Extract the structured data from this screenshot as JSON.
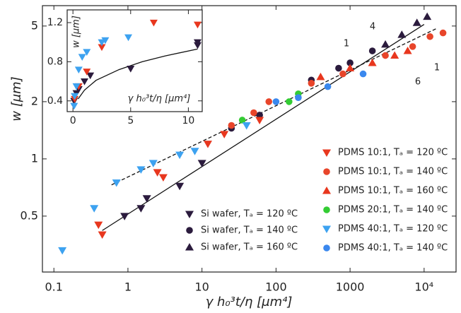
{
  "chart_data": [
    {
      "type": "scatter",
      "xlabel": "γ h₀³t/η  [μm⁴]",
      "ylabel": "w [μm]",
      "xscale": "log",
      "yscale": "log",
      "xlim": [
        0.07,
        27000
      ],
      "ylim": [
        0.254,
        6.4
      ],
      "xticks": [
        0.1,
        1,
        10,
        100,
        1000,
        {
          "value": 10000,
          "label": "10⁴"
        }
      ],
      "yticks": [
        0.5,
        1,
        2,
        5
      ],
      "series": [
        {
          "name": "Si wafer, Tₐ = 120 ºC",
          "color": "#2b1b3d",
          "marker": "down",
          "x": [
            0.9,
            1.5,
            1.8,
            5,
            10
          ],
          "y": [
            0.5,
            0.55,
            0.62,
            0.72,
            0.95
          ]
        },
        {
          "name": "Si wafer, Tₐ = 140 ºC",
          "color": "#2b1b3d",
          "marker": "circle",
          "x": [
            25,
            60,
            300,
            700,
            1000,
            2000
          ],
          "y": [
            1.45,
            1.7,
            2.6,
            3.0,
            3.2,
            3.7
          ]
        },
        {
          "name": "Si wafer, Tₐ = 160 ºC",
          "color": "#2b1b3d",
          "marker": "up",
          "x": [
            3000,
            5000,
            8000,
            11000
          ],
          "y": [
            4.0,
            4.5,
            5.2,
            5.6
          ]
        },
        {
          "name": "PDMS 10:1, Tₐ = 120 ºC",
          "color": "#e8371e",
          "marker": "down",
          "x": [
            0.4,
            0.45,
            2.5,
            3,
            12,
            20,
            60
          ],
          "y": [
            0.45,
            0.4,
            0.85,
            0.8,
            1.2,
            1.35,
            1.6
          ]
        },
        {
          "name": "PDMS 10:1, Tₐ = 140 ºC",
          "color": "#e8452a",
          "marker": "circle",
          "x": [
            25,
            50,
            80,
            300,
            800,
            3000,
            7000,
            12000,
            18000
          ],
          "y": [
            1.5,
            1.75,
            2.0,
            2.5,
            2.8,
            3.5,
            3.9,
            4.4,
            4.6
          ]
        },
        {
          "name": "PDMS 10:1, Tₐ = 160 ºC",
          "color": "#e8371e",
          "marker": "up",
          "x": [
            400,
            1000,
            2000,
            4000,
            6000
          ],
          "y": [
            2.7,
            3.0,
            3.2,
            3.5,
            3.7
          ]
        },
        {
          "name": "PDMS 20:1, Tₐ = 140 ºC",
          "color": "#33cc33",
          "marker": "circle",
          "x": [
            35,
            150,
            200
          ],
          "y": [
            1.6,
            2.0,
            2.2
          ]
        },
        {
          "name": "PDMS 40:1, Tₐ = 120 ºC",
          "color": "#3da2f0",
          "marker": "down",
          "x": [
            0.13,
            0.35,
            0.7,
            1.5,
            2.2,
            5,
            8,
            40
          ],
          "y": [
            0.33,
            0.55,
            0.75,
            0.88,
            0.95,
            1.05,
            1.1,
            1.5
          ]
        },
        {
          "name": "PDMS 40:1, Tₐ = 140 ºC",
          "color": "#3a88ee",
          "marker": "circle",
          "x": [
            100,
            200,
            500,
            1500
          ],
          "y": [
            2.0,
            2.1,
            2.4,
            2.8
          ]
        }
      ],
      "lines": [
        {
          "style": "solid",
          "x": [
            0.45,
            10000
          ],
          "y": [
            0.42,
            5.1
          ]
        },
        {
          "style": "dashed",
          "x": [
            0.6,
            15000
          ],
          "y": [
            0.73,
            4.87
          ]
        }
      ],
      "annotations": [
        "1",
        "4",
        "1",
        "6"
      ]
    },
    {
      "type": "scatter",
      "xlabel": "γ h₀³t/η  [μm⁴]",
      "ylabel": "w [μm]",
      "xlim": [
        -0.5,
        11.2
      ],
      "ylim": [
        0.29,
        1.33
      ],
      "xticks": [
        0,
        5,
        10
      ],
      "yticks": [
        0.4,
        0.8,
        1.2
      ],
      "series": [
        {
          "color": "#2b1b3d",
          "marker": "down",
          "x": [
            0.1,
            0.3,
            0.5,
            1,
            1.5,
            5,
            10.8,
            10.8
          ],
          "y": [
            0.4,
            0.48,
            0.52,
            0.6,
            0.66,
            0.73,
            0.97,
            1.0
          ]
        },
        {
          "color": "#e8371e",
          "marker": "down",
          "x": [
            0.15,
            0.5,
            1.2,
            2.5,
            7,
            10.8
          ],
          "y": [
            0.42,
            0.55,
            0.7,
            0.95,
            1.2,
            1.18
          ]
        },
        {
          "color": "#3da2f0",
          "marker": "down",
          "x": [
            0.1,
            0.15,
            0.3,
            0.5,
            0.8,
            1.2,
            2.5,
            2.8,
            4.8
          ],
          "y": [
            0.35,
            0.45,
            0.55,
            0.72,
            0.85,
            0.9,
            1.0,
            1.02,
            1.05
          ]
        }
      ],
      "lines": [
        {
          "style": "solid",
          "x": [
            0.45,
            1,
            2,
            4,
            6,
            8,
            10.8
          ],
          "y": [
            0.42,
            0.51,
            0.61,
            0.72,
            0.8,
            0.86,
            0.93
          ]
        }
      ]
    }
  ]
}
